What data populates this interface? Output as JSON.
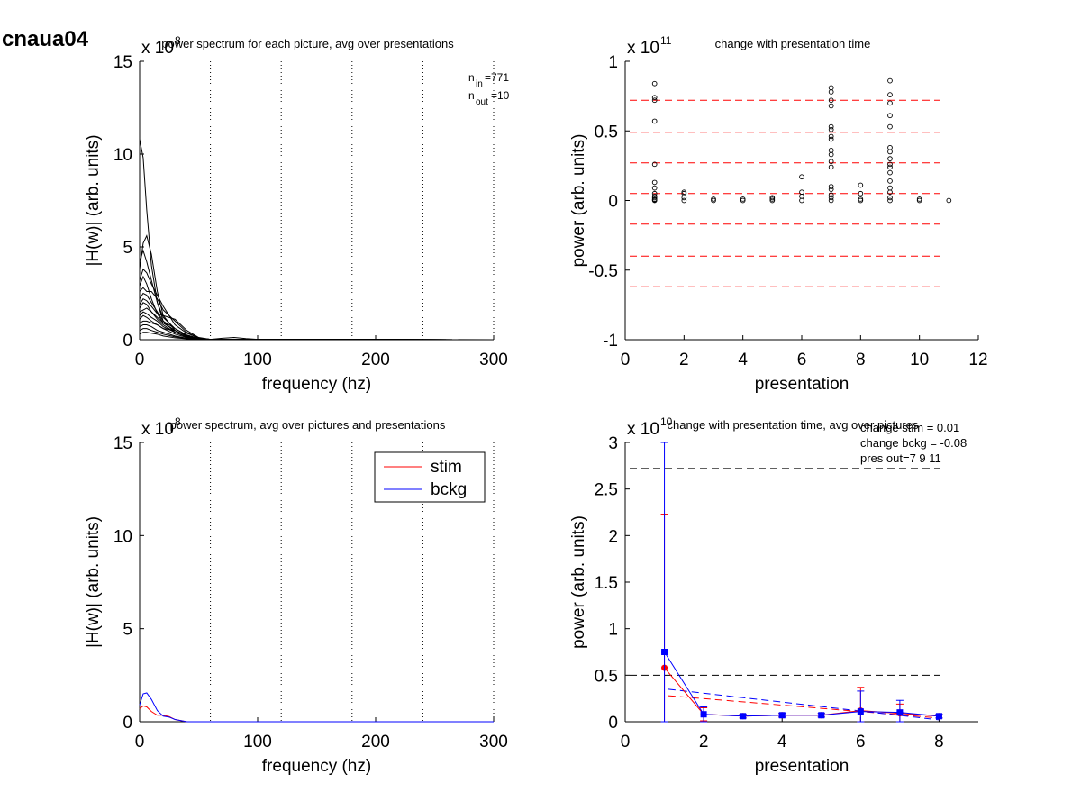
{
  "figure_title": "cnaua04",
  "chart_data": [
    {
      "type": "line",
      "title": "power spectrum for each picture, avg over presentations",
      "xlabel": "frequency (hz)",
      "ylabel": "|H(w)| (arb. units)",
      "exponent_label": "x 10",
      "exponent": "8",
      "xlim": [
        0,
        300
      ],
      "ylim": [
        0,
        15
      ],
      "xticks": [
        "0",
        "100",
        "200",
        "300"
      ],
      "yticks": [
        "0",
        "5",
        "10",
        "15"
      ],
      "vlines": [
        60,
        120,
        180,
        240,
        300
      ],
      "grid": false,
      "annotations": [
        "n",
        "in",
        "=771",
        "n",
        "out",
        "=10"
      ],
      "line_color": "#000000",
      "series_note": "many overlapping per-picture spectra",
      "series": [
        {
          "x": [
            0,
            3,
            6,
            10,
            15,
            20,
            30,
            40,
            50,
            60,
            300
          ],
          "values": [
            10.8,
            9.8,
            7.0,
            4.0,
            2.0,
            1.0,
            0.4,
            0.15,
            0.05,
            0.02,
            0
          ]
        },
        {
          "x": [
            0,
            3,
            6,
            10,
            15,
            20,
            30,
            40,
            50,
            60,
            300
          ],
          "values": [
            3.8,
            5.2,
            5.6,
            4.6,
            2.6,
            1.3,
            0.5,
            0.2,
            0.05,
            0.02,
            0
          ]
        },
        {
          "x": [
            0,
            3,
            6,
            10,
            15,
            20,
            30,
            40,
            50,
            60,
            300
          ],
          "values": [
            4.2,
            4.8,
            4.2,
            3.2,
            2.0,
            1.2,
            0.6,
            0.25,
            0.08,
            0.02,
            0
          ]
        },
        {
          "x": [
            0,
            3,
            6,
            10,
            15,
            20,
            30,
            40,
            50,
            60,
            300
          ],
          "values": [
            3.2,
            3.8,
            3.6,
            3.0,
            2.4,
            1.8,
            0.8,
            0.35,
            0.1,
            0.02,
            0
          ]
        },
        {
          "x": [
            0,
            3,
            6,
            10,
            15,
            20,
            30,
            40,
            50,
            60,
            300
          ],
          "values": [
            2.9,
            3.4,
            3.0,
            2.2,
            1.4,
            0.9,
            0.5,
            0.2,
            0.06,
            0.02,
            0
          ]
        },
        {
          "x": [
            0,
            3,
            6,
            10,
            15,
            20,
            30,
            40,
            50,
            60,
            300
          ],
          "values": [
            2.6,
            2.8,
            2.6,
            2.6,
            2.2,
            1.6,
            1.0,
            0.4,
            0.1,
            0.02,
            0
          ]
        },
        {
          "x": [
            0,
            3,
            6,
            10,
            15,
            20,
            30,
            40,
            50,
            60,
            300
          ],
          "values": [
            2.2,
            2.5,
            2.4,
            2.0,
            1.5,
            1.0,
            0.6,
            0.25,
            0.06,
            0.02,
            0
          ]
        },
        {
          "x": [
            0,
            3,
            6,
            10,
            15,
            20,
            30,
            40,
            50,
            60,
            300
          ],
          "values": [
            1.9,
            2.2,
            2.1,
            1.8,
            1.4,
            1.3,
            1.1,
            0.5,
            0.12,
            0.02,
            0
          ]
        },
        {
          "x": [
            0,
            3,
            6,
            10,
            15,
            20,
            30,
            40,
            50,
            60,
            300
          ],
          "values": [
            1.7,
            2.0,
            1.9,
            1.5,
            1.1,
            0.8,
            0.4,
            0.15,
            0.05,
            0.02,
            0
          ]
        },
        {
          "x": [
            0,
            3,
            6,
            10,
            15,
            20,
            30,
            40,
            50,
            60,
            300
          ],
          "values": [
            1.5,
            1.6,
            1.7,
            1.5,
            1.2,
            0.9,
            0.5,
            0.2,
            0.05,
            0.02,
            0
          ]
        },
        {
          "x": [
            0,
            3,
            6,
            10,
            15,
            20,
            30,
            40,
            50,
            60,
            300
          ],
          "values": [
            1.3,
            1.5,
            1.4,
            1.2,
            1.0,
            0.7,
            0.4,
            0.15,
            0.04,
            0.01,
            0
          ]
        },
        {
          "x": [
            0,
            3,
            6,
            10,
            15,
            20,
            30,
            40,
            50,
            60,
            300
          ],
          "values": [
            1.1,
            1.3,
            1.2,
            1.0,
            0.8,
            0.6,
            0.3,
            0.12,
            0.04,
            0.01,
            0
          ]
        },
        {
          "x": [
            0,
            3,
            6,
            10,
            15,
            20,
            30,
            40,
            50,
            60,
            300
          ],
          "values": [
            0.9,
            1.0,
            1.0,
            0.9,
            0.8,
            0.6,
            0.5,
            0.2,
            0.05,
            0.01,
            0
          ]
        },
        {
          "x": [
            0,
            3,
            6,
            10,
            15,
            20,
            30,
            40,
            50,
            60,
            300
          ],
          "values": [
            0.7,
            0.8,
            0.8,
            0.7,
            0.5,
            0.4,
            0.2,
            0.08,
            0.03,
            0.01,
            0
          ]
        },
        {
          "x": [
            0,
            3,
            6,
            10,
            15,
            20,
            30,
            40,
            50,
            60,
            300
          ],
          "values": [
            0.5,
            0.6,
            0.6,
            0.5,
            0.4,
            0.3,
            0.15,
            0.06,
            0.02,
            0.01,
            0
          ]
        },
        {
          "x": [
            0,
            3,
            6,
            10,
            15,
            20,
            30,
            40,
            50,
            60,
            300
          ],
          "values": [
            0.3,
            0.4,
            0.4,
            0.35,
            0.3,
            0.2,
            0.1,
            0.05,
            0.02,
            0.01,
            0
          ]
        },
        {
          "x": [
            0,
            40,
            60,
            70,
            80,
            90,
            100,
            300
          ],
          "values": [
            0,
            0,
            0.02,
            0.08,
            0.12,
            0.06,
            0.02,
            0
          ]
        }
      ]
    },
    {
      "type": "scatter",
      "title": "change with presentation time",
      "xlabel": "presentation",
      "ylabel": "power (arb. units)",
      "exponent_label": "x 10",
      "exponent": "11",
      "xlim": [
        0,
        12
      ],
      "ylim": [
        -1,
        1
      ],
      "xticks": [
        "0",
        "2",
        "4",
        "6",
        "8",
        "10",
        "12"
      ],
      "yticks": [
        "-1",
        "-0.5",
        "0",
        "0.5",
        "1"
      ],
      "grid": false,
      "hlines": [
        0.72,
        0.49,
        0.27,
        0.05,
        -0.17,
        -0.4,
        -0.62
      ],
      "hline_color": "#ff0000",
      "marker": "open-circle",
      "points_by_presentation": [
        {
          "x": 1,
          "y": [
            0.84,
            0.74,
            0.72,
            0.57,
            0.26,
            0.13,
            0.09,
            0.05,
            0.03,
            0.02,
            0.01,
            0.005,
            0.0
          ]
        },
        {
          "x": 2,
          "y": [
            0.06,
            0.05,
            0.02,
            0.0
          ]
        },
        {
          "x": 3,
          "y": [
            0.01,
            0.0
          ]
        },
        {
          "x": 4,
          "y": [
            0.01,
            0.0
          ]
        },
        {
          "x": 5,
          "y": [
            0.02,
            0.01,
            0.0
          ]
        },
        {
          "x": 6,
          "y": [
            0.17,
            0.06,
            0.03,
            0.0
          ]
        },
        {
          "x": 7,
          "y": [
            0.81,
            0.78,
            0.72,
            0.68,
            0.53,
            0.51,
            0.46,
            0.44,
            0.36,
            0.33,
            0.28,
            0.24,
            0.1,
            0.08,
            0.04,
            0.02,
            0.0
          ]
        },
        {
          "x": 8,
          "y": [
            0.11,
            0.05,
            0.01,
            0.0
          ]
        },
        {
          "x": 9,
          "y": [
            0.86,
            0.76,
            0.7,
            0.61,
            0.53,
            0.38,
            0.35,
            0.3,
            0.26,
            0.24,
            0.2,
            0.14,
            0.09,
            0.06,
            0.02,
            0.0
          ]
        },
        {
          "x": 10,
          "y": [
            0.01,
            0.0
          ]
        },
        {
          "x": 11,
          "y": [
            0.0
          ]
        }
      ]
    },
    {
      "type": "line",
      "title": "power spectrum, avg over pictures and presentations",
      "xlabel": "frequency (hz)",
      "ylabel": "|H(w)| (arb. units)",
      "exponent_label": "x 10",
      "exponent": "8",
      "xlim": [
        0,
        300
      ],
      "ylim": [
        0,
        15
      ],
      "xticks": [
        "0",
        "100",
        "200",
        "300"
      ],
      "yticks": [
        "0",
        "5",
        "10",
        "15"
      ],
      "vlines": [
        60,
        120,
        180,
        240,
        300
      ],
      "grid": false,
      "legend": {
        "position": "top-right",
        "entries": [
          "stim",
          "bckg"
        ]
      },
      "series": [
        {
          "name": "stim",
          "color": "#ff0000",
          "x": [
            0,
            3,
            6,
            10,
            15,
            20,
            25,
            30,
            40,
            300
          ],
          "values": [
            0.7,
            0.85,
            0.8,
            0.55,
            0.35,
            0.35,
            0.28,
            0.12,
            0,
            0
          ]
        },
        {
          "name": "bckg",
          "color": "#0000ff",
          "x": [
            0,
            3,
            6,
            10,
            15,
            20,
            25,
            30,
            40,
            300
          ],
          "values": [
            0.9,
            1.5,
            1.55,
            1.2,
            0.6,
            0.3,
            0.25,
            0.12,
            0,
            0
          ]
        }
      ]
    },
    {
      "type": "line",
      "title": "change with presentation time, avg over pictures",
      "xlabel": "presentation",
      "ylabel": "power (arb. units)",
      "exponent_label": "x 10",
      "exponent": "10",
      "xlim": [
        0,
        9
      ],
      "ylim": [
        0,
        3
      ],
      "xticks": [
        "0",
        "2",
        "4",
        "6",
        "8"
      ],
      "yticks": [
        "0",
        "0.5",
        "1",
        "1.5",
        "2",
        "2.5",
        "3"
      ],
      "grid": false,
      "annotations": [
        "change stim = 0.01",
        "change bckg = -0.08",
        "pres out=7 9 11"
      ],
      "hlines": [
        2.72,
        0.5
      ],
      "hline_color": "#000000",
      "series": [
        {
          "name": "stim",
          "color": "#ff0000",
          "x": [
            1,
            2,
            3,
            4,
            5,
            6,
            7,
            8
          ],
          "values": [
            0.58,
            0.08,
            0.06,
            0.07,
            0.07,
            0.12,
            0.09,
            0.06
          ],
          "err": [
            1.65,
            0.07,
            0.02,
            0.02,
            0.02,
            0.25,
            0.1,
            0.02
          ]
        },
        {
          "name": "bckg",
          "color": "#0000ff",
          "x": [
            1,
            2,
            3,
            4,
            5,
            6,
            7,
            8
          ],
          "values": [
            0.75,
            0.08,
            0.06,
            0.07,
            0.07,
            0.11,
            0.1,
            0.06
          ],
          "err": [
            2.3,
            0.08,
            0.02,
            0.02,
            0.02,
            0.22,
            0.13,
            0.02
          ]
        }
      ],
      "trend_lines": [
        {
          "color": "#ff0000",
          "x": [
            1.1,
            8
          ],
          "values": [
            0.28,
            0.04
          ]
        },
        {
          "color": "#0000ff",
          "x": [
            1.1,
            8
          ],
          "values": [
            0.35,
            0.02
          ]
        }
      ]
    }
  ]
}
